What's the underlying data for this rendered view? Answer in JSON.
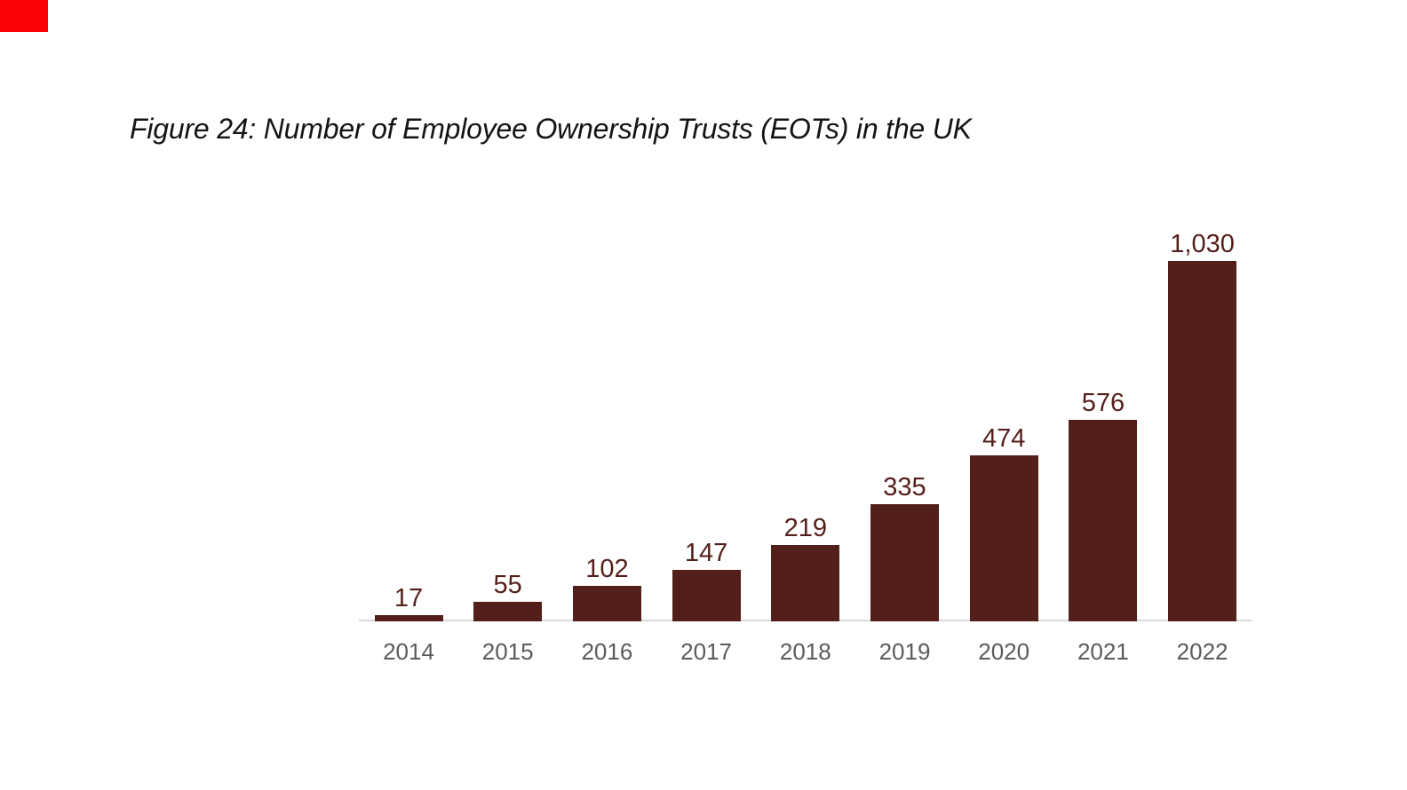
{
  "figure": {
    "title": "Figure 24: Number of Employee Ownership Trusts (EOTs) in the UK",
    "title_color": "#141414"
  },
  "marker": {
    "name": "red-corner-marker",
    "color": "#fb0306"
  },
  "chart_data": {
    "type": "bar",
    "title": "Figure 24: Number of Employee Ownership Trusts (EOTs) in the UK",
    "categories": [
      "2014",
      "2015",
      "2016",
      "2017",
      "2018",
      "2019",
      "2020",
      "2021",
      "2022"
    ],
    "values": [
      17,
      55,
      102,
      147,
      219,
      335,
      474,
      576,
      1030
    ],
    "value_labels": [
      "17",
      "55",
      "102",
      "147",
      "219",
      "335",
      "474",
      "576",
      "1,030"
    ],
    "xlabel": "",
    "ylabel": "",
    "ylim": [
      0,
      1030
    ],
    "grid": false,
    "legend": "none",
    "y_axis_visible": false,
    "data_labels_position": "outside-end",
    "bar_color": "#531f1a",
    "value_label_color": "#541f1a",
    "tick_label_color": "#5b5b5b",
    "axis_line_color": "#d9d9d9",
    "background": "#ffffff"
  }
}
